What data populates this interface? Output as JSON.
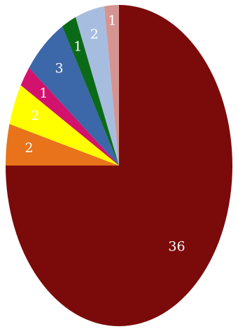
{
  "chart_data": {
    "type": "pie",
    "start": "top",
    "direction": "clockwise",
    "slices": [
      {
        "label": "36",
        "value": 36,
        "color": "#7b0a0a"
      },
      {
        "label": "2",
        "value": 2,
        "color": "#e8731a"
      },
      {
        "label": "2",
        "value": 2,
        "color": "#ffff00"
      },
      {
        "label": "1",
        "value": 1,
        "color": "#d3126e"
      },
      {
        "label": "3",
        "value": 3,
        "color": "#3c67a8"
      },
      {
        "label": "1",
        "value": 1,
        "color": "#0b6a17"
      },
      {
        "label": "2",
        "value": 2,
        "color": "#a7bddf"
      },
      {
        "label": "1",
        "value": 1,
        "color": "#d69490"
      }
    ]
  }
}
